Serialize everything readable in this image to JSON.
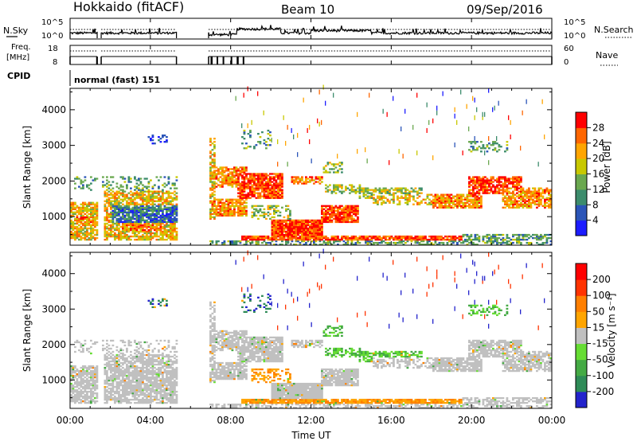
{
  "header": {
    "radar": "Hokkaido (fitACF)",
    "beam": "Beam 10",
    "date": "09/Sep/2016"
  },
  "top_panels": {
    "nsky_label": "N.Sky",
    "nsky_tick_top": "10^5",
    "nsky_tick_bottom": "10^0",
    "nsearch_label": "N.Search",
    "nsearch_tick_top": "10^5",
    "nsearch_tick_bottom": "10^0",
    "freq_label_1": "Freq.",
    "freq_label_2": "[MHz]",
    "freq_tick_top": "18",
    "freq_tick_bottom": "8",
    "nave_label": "Nave",
    "nave_tick_top": "60",
    "nave_tick_bottom": "0",
    "cpid_label": "CPID",
    "cpid_value": "normal (fast) 151"
  },
  "chart_data": [
    {
      "type": "heatmap",
      "name": "power",
      "ylabel": "Slant Range [km]",
      "ylim": [
        200,
        4600
      ],
      "yticks": [
        "1000",
        "2000",
        "3000",
        "4000"
      ],
      "colorbar_label": "Power [dB]",
      "colorbar_ticks": [
        "4",
        "8",
        "12",
        "16",
        "20",
        "24",
        "28"
      ],
      "colorbar_colors": [
        "#1c1cff",
        "#2b55b8",
        "#3c8c6c",
        "#6aa84f",
        "#c8c800",
        "#ffa500",
        "#ff6600",
        "#ff0000"
      ],
      "time_coverage": [
        [
          0.0,
          1.35
        ],
        [
          1.55,
          5.3
        ],
        [
          6.9,
          24.0
        ]
      ]
    },
    {
      "type": "heatmap",
      "name": "velocity",
      "ylabel": "Slant Range [km]",
      "ylim": [
        200,
        4600
      ],
      "yticks": [
        "1000",
        "2000",
        "3000",
        "4000"
      ],
      "colorbar_label": "Velocity [m s⁻¹]",
      "colorbar_ticks": [
        "200",
        "100",
        "50",
        "15",
        "-15",
        "-50",
        "-100",
        "-200"
      ],
      "colorbar_colors": [
        "#2323cc",
        "#2e8b57",
        "#44aa44",
        "#66dd33",
        "#c0c0c0",
        "#ffa500",
        "#ff7f00",
        "#ff3300",
        "#ff0000"
      ],
      "time_coverage": [
        [
          0.0,
          1.35
        ],
        [
          1.55,
          5.3
        ],
        [
          6.9,
          24.0
        ]
      ]
    }
  ],
  "x_axis": {
    "ticks": [
      "00:00",
      "04:00",
      "08:00",
      "12:00",
      "16:00",
      "20:00",
      "00:00"
    ],
    "label": "Time UT"
  }
}
